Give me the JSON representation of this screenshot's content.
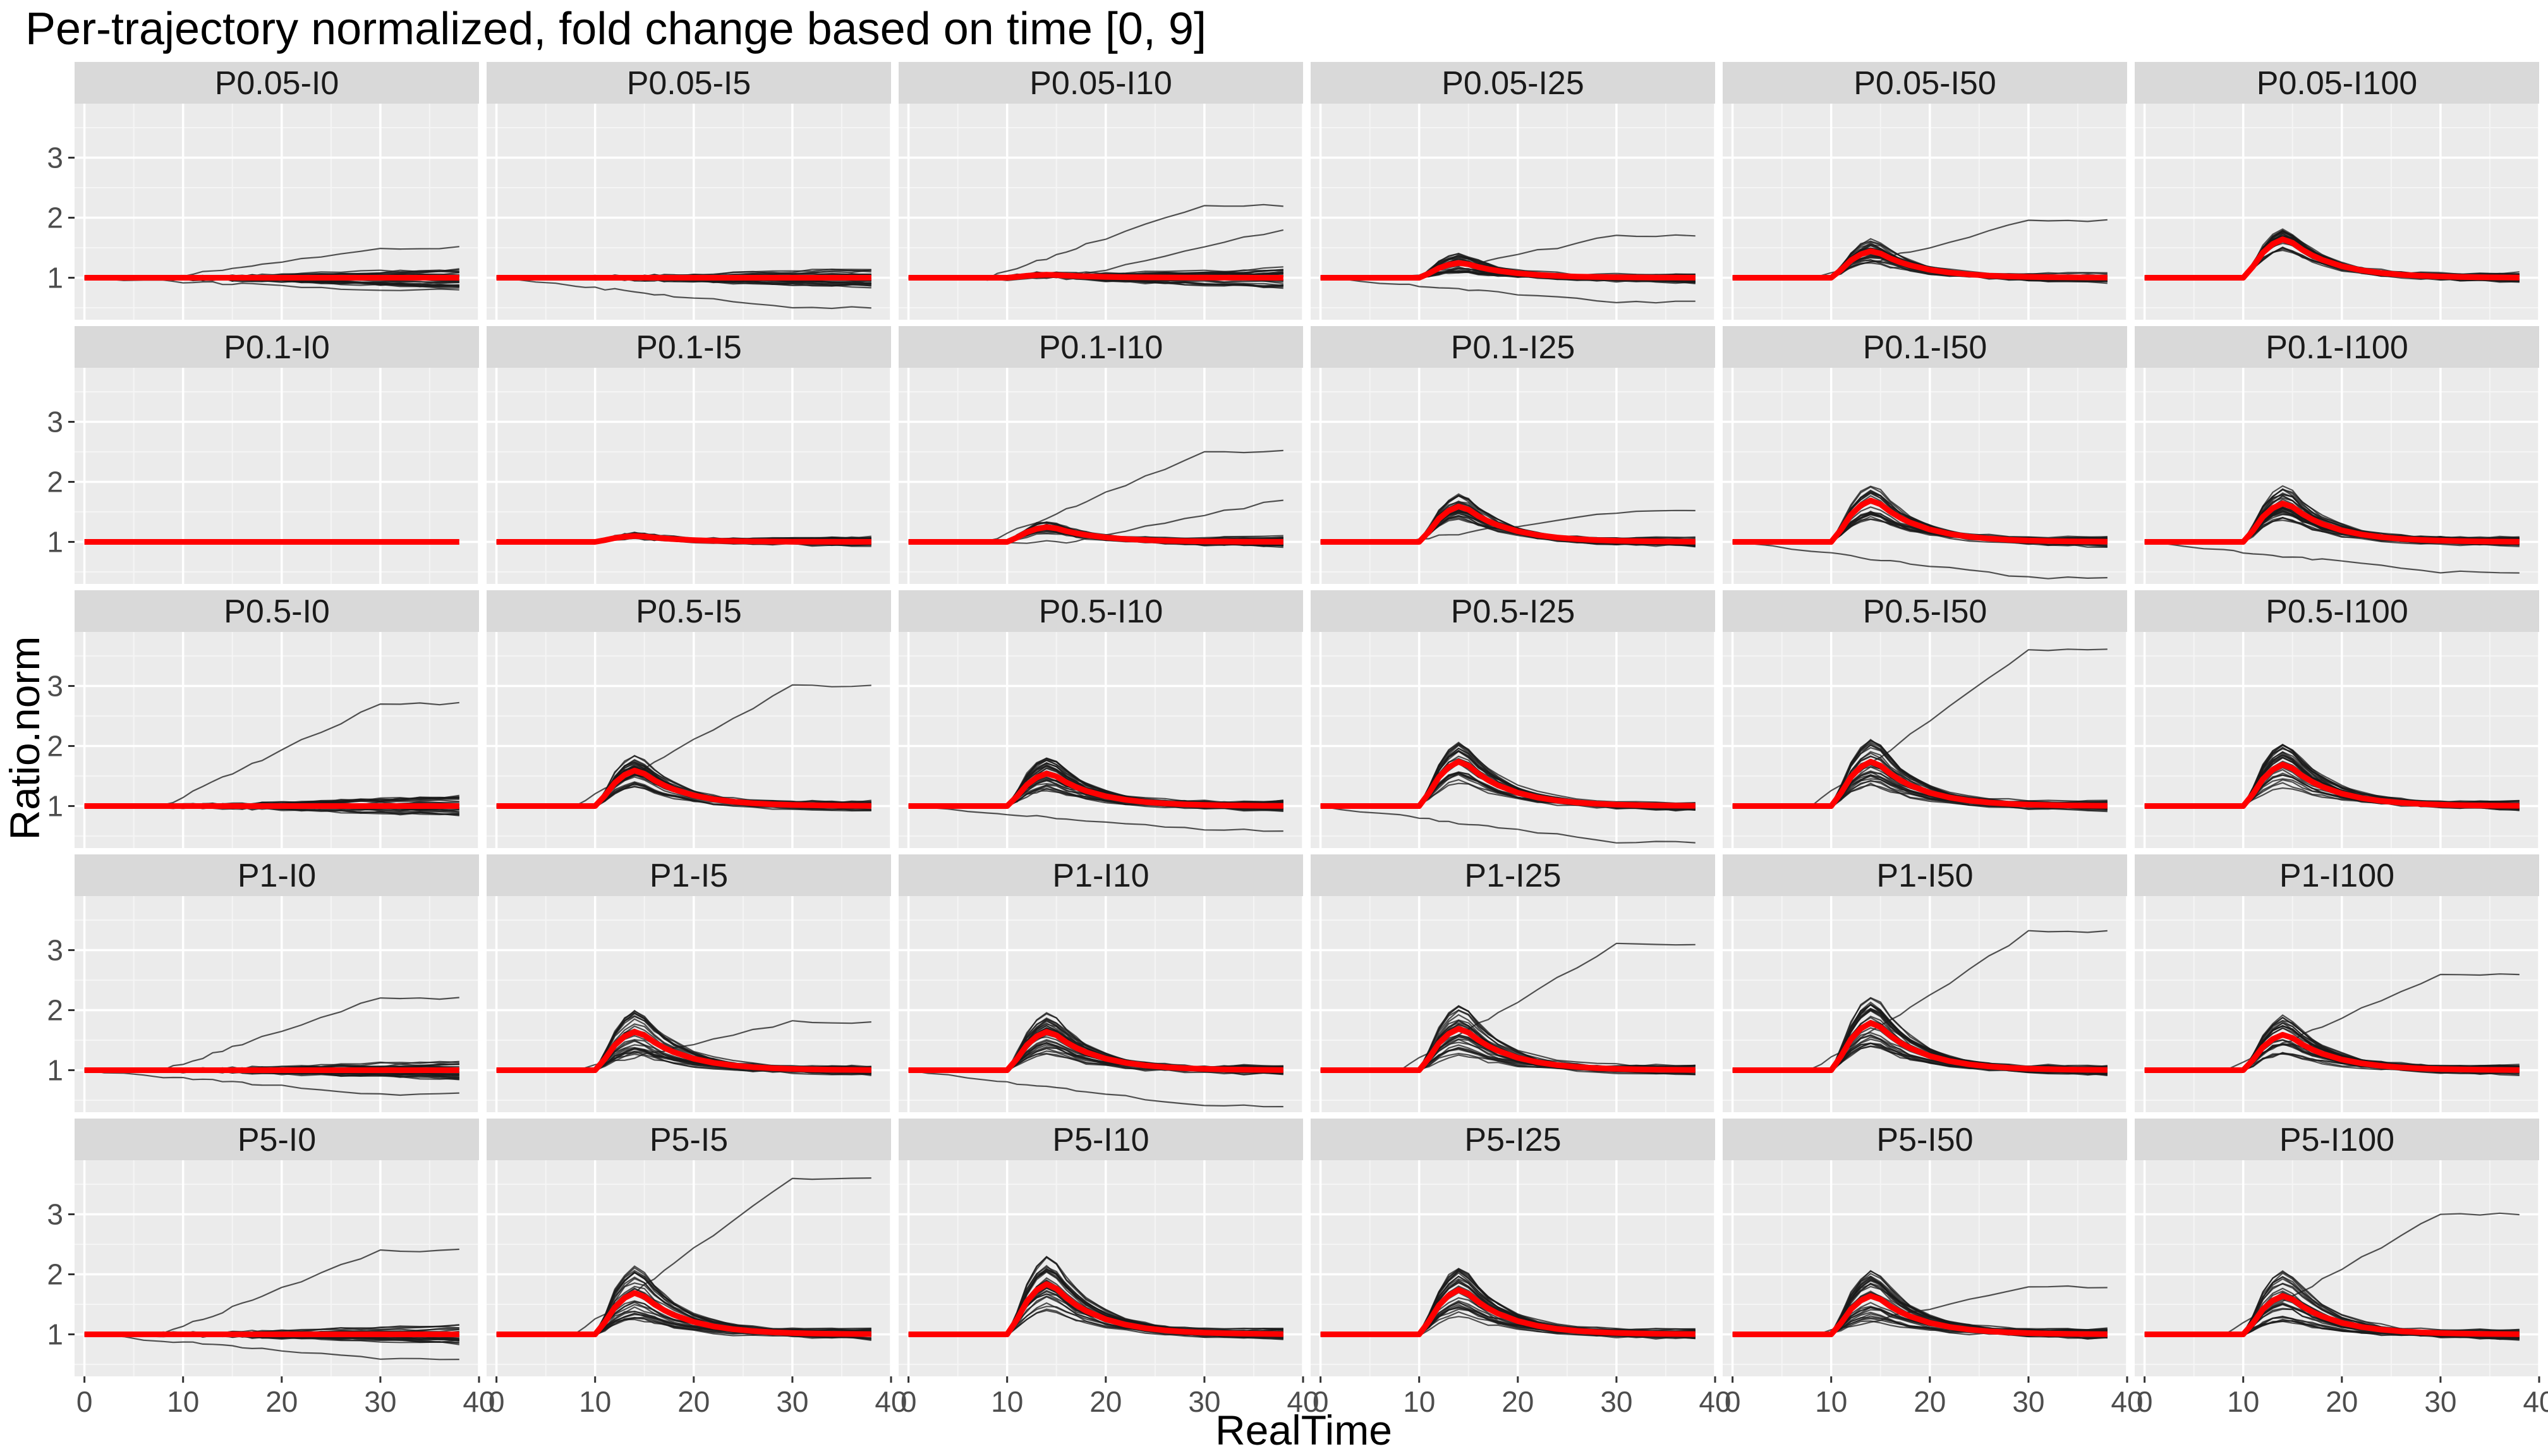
{
  "chart_data": {
    "type": "line",
    "title": "Per-trajectory normalized, fold change based on time [0, 9]",
    "xlabel": "RealTime",
    "ylabel": "Ratio.norm",
    "xlim": [
      -1,
      40
    ],
    "ylim": [
      0.3,
      3.9
    ],
    "x_ticks": [
      0,
      10,
      20,
      30,
      40
    ],
    "y_ticks": [
      1,
      2,
      3
    ],
    "grid": true,
    "facet_rows": [
      "P0.05",
      "P0.1",
      "P0.5",
      "P1",
      "P5"
    ],
    "facet_cols": [
      "I0",
      "I5",
      "I10",
      "I25",
      "I50",
      "I100"
    ],
    "colors": {
      "panel_bg": "#ebebeb",
      "grid_major": "#ffffff",
      "strip_bg": "#d9d9d9",
      "trajectory": "#1a1a1a",
      "mean": "#ff0000"
    },
    "x": [
      0,
      2,
      4,
      6,
      8,
      9,
      10,
      11,
      12,
      13,
      14,
      15,
      16,
      17,
      18,
      20,
      22,
      24,
      26,
      28,
      30,
      32,
      34,
      36,
      38
    ],
    "panels": [
      {
        "label": "P0.05-I0",
        "mean_peak": 1.0,
        "spread": 0.12,
        "n_traj": 30,
        "outliers": [
          1.5,
          0.8
        ]
      },
      {
        "label": "P0.05-I5",
        "mean_peak": 1.0,
        "spread": 0.08,
        "n_traj": 30,
        "outliers": [
          0.5
        ]
      },
      {
        "label": "P0.05-I10",
        "mean_peak": 1.05,
        "spread": 0.1,
        "n_traj": 30,
        "outliers": [
          2.2,
          1.8
        ]
      },
      {
        "label": "P0.05-I25",
        "mean_peak": 1.25,
        "spread": 0.15,
        "n_traj": 30,
        "outliers": [
          1.7,
          0.6
        ]
      },
      {
        "label": "P0.05-I50",
        "mean_peak": 1.45,
        "spread": 0.2,
        "n_traj": 30,
        "outliers": [
          1.95
        ]
      },
      {
        "label": "P0.05-I100",
        "mean_peak": 1.65,
        "spread": 0.2,
        "n_traj": 30,
        "outliers": []
      },
      {
        "label": "P0.1-I0",
        "mean_peak": 1.0,
        "spread": 0.0,
        "n_traj": 0,
        "outliers": []
      },
      {
        "label": "P0.1-I5",
        "mean_peak": 1.1,
        "spread": 0.08,
        "n_traj": 30,
        "outliers": []
      },
      {
        "label": "P0.1-I10",
        "mean_peak": 1.25,
        "spread": 0.1,
        "n_traj": 30,
        "outliers": [
          2.5,
          1.7
        ]
      },
      {
        "label": "P0.1-I25",
        "mean_peak": 1.6,
        "spread": 0.22,
        "n_traj": 30,
        "outliers": [
          1.5
        ]
      },
      {
        "label": "P0.1-I50",
        "mean_peak": 1.7,
        "spread": 0.3,
        "n_traj": 30,
        "outliers": [
          0.4
        ]
      },
      {
        "label": "P0.1-I100",
        "mean_peak": 1.65,
        "spread": 0.3,
        "n_traj": 30,
        "outliers": [
          0.5
        ]
      },
      {
        "label": "P0.5-I0",
        "mean_peak": 1.0,
        "spread": 0.1,
        "n_traj": 30,
        "outliers": [
          2.7
        ]
      },
      {
        "label": "P0.5-I5",
        "mean_peak": 1.6,
        "spread": 0.3,
        "n_traj": 30,
        "outliers": [
          3.0
        ]
      },
      {
        "label": "P0.5-I10",
        "mean_peak": 1.55,
        "spread": 0.3,
        "n_traj": 30,
        "outliers": [
          0.6
        ]
      },
      {
        "label": "P0.5-I25",
        "mean_peak": 1.75,
        "spread": 0.35,
        "n_traj": 30,
        "outliers": [
          0.4
        ]
      },
      {
        "label": "P0.5-I50",
        "mean_peak": 1.75,
        "spread": 0.4,
        "n_traj": 30,
        "outliers": [
          3.6
        ]
      },
      {
        "label": "P0.5-I100",
        "mean_peak": 1.7,
        "spread": 0.4,
        "n_traj": 30,
        "outliers": []
      },
      {
        "label": "P1-I0",
        "mean_peak": 1.0,
        "spread": 0.12,
        "n_traj": 30,
        "outliers": [
          2.2,
          0.6
        ]
      },
      {
        "label": "P1-I5",
        "mean_peak": 1.65,
        "spread": 0.4,
        "n_traj": 30,
        "outliers": [
          1.8
        ]
      },
      {
        "label": "P1-I10",
        "mean_peak": 1.65,
        "spread": 0.4,
        "n_traj": 30,
        "outliers": [
          0.4
        ]
      },
      {
        "label": "P1-I25",
        "mean_peak": 1.7,
        "spread": 0.45,
        "n_traj": 30,
        "outliers": [
          3.1
        ]
      },
      {
        "label": "P1-I50",
        "mean_peak": 1.8,
        "spread": 0.45,
        "n_traj": 30,
        "outliers": [
          3.3
        ]
      },
      {
        "label": "P1-I100",
        "mean_peak": 1.6,
        "spread": 0.35,
        "n_traj": 30,
        "outliers": [
          2.6
        ]
      },
      {
        "label": "P5-I0",
        "mean_peak": 1.0,
        "spread": 0.15,
        "n_traj": 30,
        "outliers": [
          2.4,
          0.6
        ]
      },
      {
        "label": "P5-I5",
        "mean_peak": 1.7,
        "spread": 0.45,
        "n_traj": 30,
        "outliers": [
          3.6
        ]
      },
      {
        "label": "P5-I10",
        "mean_peak": 1.85,
        "spread": 0.45,
        "n_traj": 30,
        "outliers": []
      },
      {
        "label": "P5-I25",
        "mean_peak": 1.75,
        "spread": 0.45,
        "n_traj": 30,
        "outliers": []
      },
      {
        "label": "P5-I50",
        "mean_peak": 1.65,
        "spread": 0.45,
        "n_traj": 30,
        "outliers": [
          1.8
        ]
      },
      {
        "label": "P5-I100",
        "mean_peak": 1.65,
        "spread": 0.45,
        "n_traj": 30,
        "outliers": [
          3.0
        ]
      }
    ]
  }
}
